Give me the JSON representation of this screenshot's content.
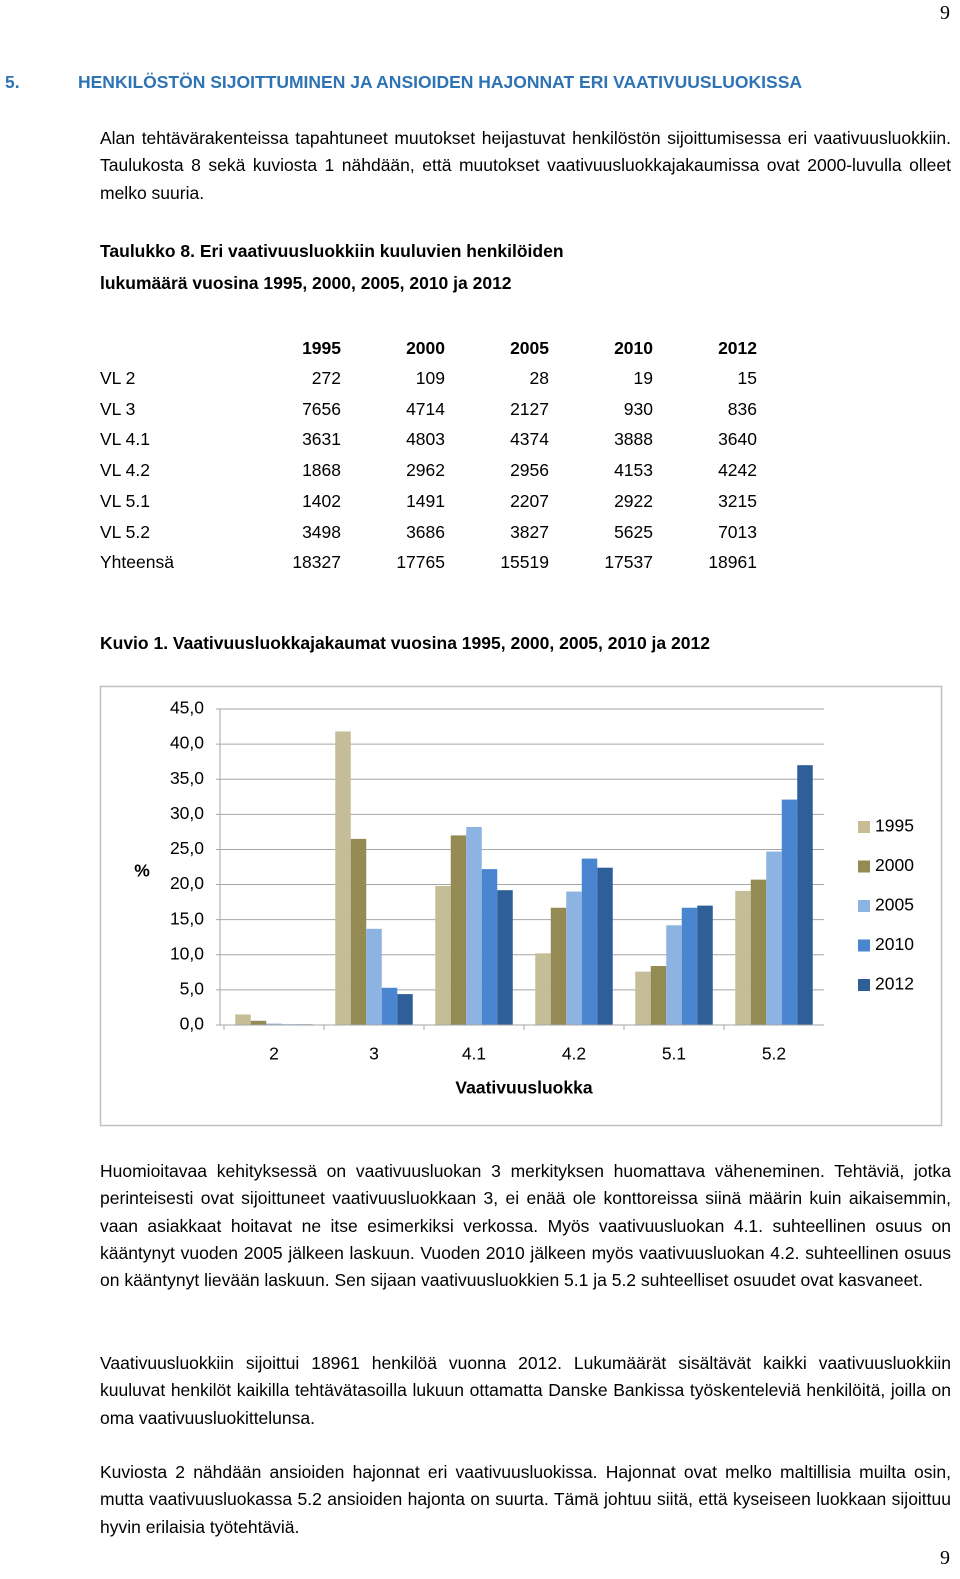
{
  "page_number_top": "9",
  "heading": {
    "number": "5.",
    "title": "HENKILÖSTÖN SIJOITTUMINEN JA ANSIOIDEN HAJONNAT ERI VAATIVUUSLUOKISSA"
  },
  "intro": "Alan tehtävärakenteissa tapahtuneet muutokset heijastuvat henkilöstön sijoittumisessa eri vaativuusluokkiin. Taulukosta 8 sekä kuviosta 1 nähdään, että muutokset vaativuusluokkajakaumissa ovat 2000-luvulla olleet melko suuria.",
  "table_caption": [
    "Taulukko 8. Eri vaativuusluokkiin kuuluvien henkilöiden",
    "lukumäärä vuosina 1995, 2000, 2005, 2010 ja 2012"
  ],
  "table": {
    "header": [
      "1995",
      "2000",
      "2005",
      "2010",
      "2012"
    ],
    "rows": [
      [
        "VL 2",
        272,
        109,
        28,
        19,
        15
      ],
      [
        "VL 3",
        7656,
        4714,
        2127,
        930,
        836
      ],
      [
        "VL 4.1",
        3631,
        4803,
        4374,
        3888,
        3640
      ],
      [
        "VL 4.2",
        1868,
        2962,
        2956,
        4153,
        4242
      ],
      [
        "VL 5.1",
        1402,
        1491,
        2207,
        2922,
        3215
      ],
      [
        "VL 5.2",
        3498,
        3686,
        3827,
        5625,
        7013
      ],
      [
        "Yhteensä",
        18327,
        17765,
        15519,
        17537,
        18961
      ]
    ]
  },
  "figure_caption": "Kuvio 1. Vaativuusluokkajakaumat vuosina 1995, 2000, 2005, 2010 ja 2012",
  "chart_data": {
    "type": "bar",
    "y_label": "%",
    "x_label": "Vaativuusluokka",
    "categories": [
      "2",
      "3",
      "4.1",
      "4.2",
      "5.1",
      "5.2"
    ],
    "series": [
      {
        "name": "1995",
        "color": "#c4bd97",
        "values": [
          1.5,
          41.8,
          19.8,
          10.2,
          7.6,
          19.1
        ]
      },
      {
        "name": "2000",
        "color": "#948a54",
        "values": [
          0.6,
          26.5,
          27.0,
          16.7,
          8.4,
          20.7
        ]
      },
      {
        "name": "2005",
        "color": "#8db3e2",
        "values": [
          0.2,
          13.7,
          28.2,
          19.0,
          14.2,
          24.7
        ]
      },
      {
        "name": "2010",
        "color": "#4a86d0",
        "values": [
          0.1,
          5.3,
          22.2,
          23.7,
          16.7,
          32.1
        ]
      },
      {
        "name": "2012",
        "color": "#2f5f98",
        "values": [
          0.1,
          4.4,
          19.2,
          22.4,
          17.0,
          37.0
        ]
      }
    ],
    "ylim": [
      0,
      45
    ],
    "yticks": [
      {
        "value": 0,
        "label": "0,0"
      },
      {
        "value": 5,
        "label": "5,0"
      },
      {
        "value": 10,
        "label": "10,0"
      },
      {
        "value": 15,
        "label": "15,0"
      },
      {
        "value": 20,
        "label": "20,0"
      },
      {
        "value": 25,
        "label": "25,0"
      },
      {
        "value": 30,
        "label": "30,0"
      },
      {
        "value": 35,
        "label": "35,0"
      },
      {
        "value": 40,
        "label": "40,0"
      },
      {
        "value": 45,
        "label": "45,0"
      }
    ],
    "grid": true,
    "legend": "right"
  },
  "paragraphs": [
    "Huomioitavaa kehityksessä on vaativuusluokan 3 merkityksen huomattava väheneminen. Tehtäviä, jotka perinteisesti ovat sijoittuneet vaativuusluokkaan 3, ei enää ole konttoreissa siinä määrin kuin aikaisemmin, vaan asiakkaat hoitavat ne itse esimerkiksi verkossa. Myös vaativuusluokan 4.1. suhteellinen osuus on kääntynyt vuoden 2005 jälkeen laskuun. Vuoden 2010 jälkeen myös vaativuusluokan 4.2. suhteellinen osuus on kääntynyt lievään laskuun. Sen sijaan vaativuusluokkien 5.1 ja 5.2 suhteelliset osuudet ovat kasvaneet.",
    "Vaativuusluokkiin sijoittui 18961 henkilöä vuonna 2012. Lukumäärät sisältävät kaikki vaativuusluokkiin kuuluvat henkilöt kaikilla tehtävätasoilla lukuun ottamatta Danske Bankissa työskenteleviä henkilöitä, joilla on oma vaativuusluokittelunsa.",
    "Kuviosta 2 nähdään ansioiden hajonnat eri vaativuusluokissa. Hajonnat ovat melko maltillisia muilta osin, mutta vaativuusluokassa 5.2 ansioiden hajonta on suurta. Tämä johtuu siitä, että kyseiseen luokkaan sijoittuu hyvin erilaisia työtehtäviä."
  ],
  "page_number_bottom": "9"
}
